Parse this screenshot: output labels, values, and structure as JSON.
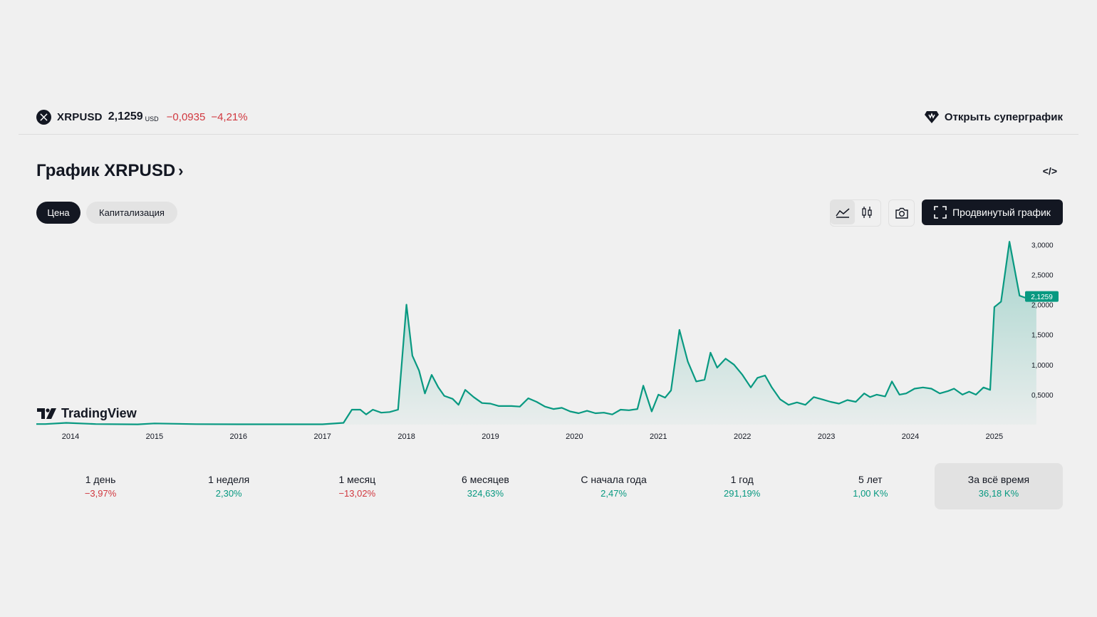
{
  "header": {
    "symbol": "XRPUSD",
    "price": "2,1259",
    "currency": "USD",
    "change": "−0,0935",
    "change_percent": "−4,21%",
    "open_supergraph": "Открыть суперграфик"
  },
  "title": "График XRPUSD",
  "title_chevron": "›",
  "embed_icon_text": "</>",
  "tabs": [
    {
      "label": "Цена",
      "active": true
    },
    {
      "label": "Капитализация",
      "active": false
    }
  ],
  "toolbar": {
    "advanced_chart": "Продвинутый график",
    "icons": [
      "area-chart-icon",
      "candles-icon",
      "camera-icon",
      "fullscreen-icon"
    ]
  },
  "brand": "TradingView",
  "colors": {
    "line": "#089981",
    "negative": "#d1383f",
    "positive": "#089981",
    "text": "#131722"
  },
  "chart_data": {
    "type": "area",
    "x_labels": [
      "2014",
      "2015",
      "2016",
      "2017",
      "2018",
      "2019",
      "2020",
      "2021",
      "2022",
      "2023",
      "2024",
      "2025"
    ],
    "y_ticks": [
      "3,0000",
      "2,5000",
      "2,0000",
      "1,5000",
      "1,0000",
      "0,5000"
    ],
    "ylim": [
      0,
      3.1
    ],
    "last_value_label": "2,1259",
    "series": [
      {
        "values": [
          [
            2013.7,
            0.01
          ],
          [
            2013.95,
            0.03
          ],
          [
            2014.3,
            0.01
          ],
          [
            2014.8,
            0.005
          ],
          [
            2015.0,
            0.02
          ],
          [
            2015.5,
            0.008
          ],
          [
            2016.0,
            0.006
          ],
          [
            2016.5,
            0.006
          ],
          [
            2017.0,
            0.006
          ],
          [
            2017.25,
            0.03
          ],
          [
            2017.35,
            0.25
          ],
          [
            2017.45,
            0.25
          ],
          [
            2017.52,
            0.17
          ],
          [
            2017.6,
            0.25
          ],
          [
            2017.7,
            0.2
          ],
          [
            2017.8,
            0.21
          ],
          [
            2017.9,
            0.25
          ],
          [
            2018.0,
            2.0
          ],
          [
            2018.07,
            1.15
          ],
          [
            2018.15,
            0.9
          ],
          [
            2018.22,
            0.52
          ],
          [
            2018.3,
            0.83
          ],
          [
            2018.38,
            0.62
          ],
          [
            2018.45,
            0.48
          ],
          [
            2018.55,
            0.43
          ],
          [
            2018.62,
            0.33
          ],
          [
            2018.7,
            0.58
          ],
          [
            2018.8,
            0.46
          ],
          [
            2018.9,
            0.36
          ],
          [
            2019.0,
            0.35
          ],
          [
            2019.1,
            0.31
          ],
          [
            2019.25,
            0.31
          ],
          [
            2019.35,
            0.3
          ],
          [
            2019.45,
            0.44
          ],
          [
            2019.55,
            0.38
          ],
          [
            2019.65,
            0.3
          ],
          [
            2019.75,
            0.26
          ],
          [
            2019.85,
            0.28
          ],
          [
            2019.95,
            0.22
          ],
          [
            2020.05,
            0.19
          ],
          [
            2020.15,
            0.23
          ],
          [
            2020.25,
            0.19
          ],
          [
            2020.35,
            0.2
          ],
          [
            2020.45,
            0.17
          ],
          [
            2020.55,
            0.25
          ],
          [
            2020.65,
            0.24
          ],
          [
            2020.75,
            0.26
          ],
          [
            2020.82,
            0.65
          ],
          [
            2020.92,
            0.22
          ],
          [
            2021.0,
            0.5
          ],
          [
            2021.08,
            0.45
          ],
          [
            2021.15,
            0.57
          ],
          [
            2021.25,
            1.58
          ],
          [
            2021.35,
            1.05
          ],
          [
            2021.45,
            0.72
          ],
          [
            2021.55,
            0.75
          ],
          [
            2021.62,
            1.2
          ],
          [
            2021.7,
            0.95
          ],
          [
            2021.8,
            1.1
          ],
          [
            2021.9,
            1.0
          ],
          [
            2022.0,
            0.83
          ],
          [
            2022.1,
            0.62
          ],
          [
            2022.18,
            0.78
          ],
          [
            2022.27,
            0.82
          ],
          [
            2022.35,
            0.62
          ],
          [
            2022.45,
            0.42
          ],
          [
            2022.55,
            0.33
          ],
          [
            2022.65,
            0.37
          ],
          [
            2022.75,
            0.33
          ],
          [
            2022.85,
            0.46
          ],
          [
            2022.95,
            0.42
          ],
          [
            2023.05,
            0.38
          ],
          [
            2023.15,
            0.35
          ],
          [
            2023.25,
            0.41
          ],
          [
            2023.35,
            0.38
          ],
          [
            2023.45,
            0.52
          ],
          [
            2023.52,
            0.46
          ],
          [
            2023.6,
            0.5
          ],
          [
            2023.7,
            0.47
          ],
          [
            2023.78,
            0.72
          ],
          [
            2023.87,
            0.5
          ],
          [
            2023.95,
            0.52
          ],
          [
            2024.05,
            0.6
          ],
          [
            2024.15,
            0.62
          ],
          [
            2024.25,
            0.6
          ],
          [
            2024.35,
            0.52
          ],
          [
            2024.45,
            0.56
          ],
          [
            2024.52,
            0.6
          ],
          [
            2024.62,
            0.5
          ],
          [
            2024.7,
            0.55
          ],
          [
            2024.78,
            0.5
          ],
          [
            2024.87,
            0.62
          ],
          [
            2024.95,
            0.58
          ],
          [
            2025.0,
            1.96
          ],
          [
            2025.08,
            2.05
          ],
          [
            2025.18,
            3.05
          ],
          [
            2025.3,
            2.15
          ],
          [
            2025.4,
            2.1
          ],
          [
            2025.5,
            2.13
          ]
        ]
      }
    ]
  },
  "periods": [
    {
      "label": "1 день",
      "value": "−3,97%",
      "dir": "down"
    },
    {
      "label": "1 неделя",
      "value": "2,30%",
      "dir": "up"
    },
    {
      "label": "1 месяц",
      "value": "−13,02%",
      "dir": "down"
    },
    {
      "label": "6 месяцев",
      "value": "324,63%",
      "dir": "up"
    },
    {
      "label": "С начала года",
      "value": "2,47%",
      "dir": "up"
    },
    {
      "label": "1 год",
      "value": "291,19%",
      "dir": "up"
    },
    {
      "label": "5 лет",
      "value": "1,00 K%",
      "dir": "up"
    },
    {
      "label": "За всё время",
      "value": "36,18 K%",
      "dir": "up",
      "active": true
    }
  ]
}
